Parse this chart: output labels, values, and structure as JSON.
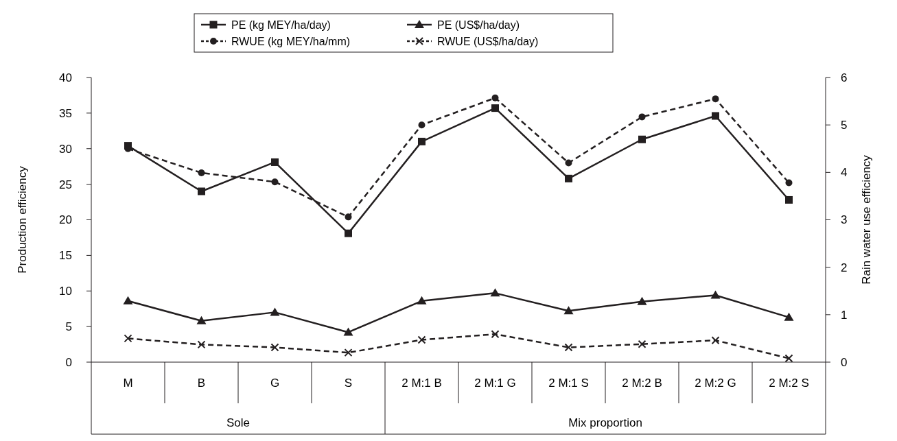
{
  "chart_data": {
    "type": "line",
    "ylabel": "Production efficiency",
    "y2label": "Rain water use efficiency",
    "categories": [
      "M",
      "B",
      "G",
      "S",
      "2 M:1 B",
      "2 M:1 G",
      "2 M:1 S",
      "2 M:2 B",
      "2 M:2 G",
      "2 M:2 S"
    ],
    "ylim": [
      0,
      40
    ],
    "yticks": [
      0,
      5,
      10,
      15,
      20,
      25,
      30,
      35,
      40
    ],
    "y2lim": [
      0,
      6
    ],
    "y2ticks": [
      0,
      1,
      2,
      3,
      4,
      5,
      6
    ],
    "legend": "top",
    "grid": false,
    "annotations": [
      "Sole",
      "Mix proportion"
    ],
    "series": [
      {
        "name": "PE (kg MEY/ha/day)",
        "color": "#231f20",
        "marker": "square",
        "line_style": "solid",
        "values": [
          30.4,
          24.0,
          28.1,
          18.1,
          31.0,
          35.7,
          25.8,
          31.3,
          34.6,
          22.8
        ]
      },
      {
        "name": "PE (US$/ha/day)",
        "color": "#231f20",
        "marker": "triangle",
        "line_style": "solid",
        "values": [
          8.6,
          5.8,
          7.0,
          4.2,
          8.6,
          9.7,
          7.2,
          8.5,
          9.4,
          6.3
        ]
      },
      {
        "name": "RWUE (kg MEY/ha/mm)",
        "color": "#231f20",
        "marker": "circle",
        "line_style": "dashed",
        "axis": "y2",
        "values": [
          4.5,
          3.99,
          3.8,
          3.06,
          5.0,
          5.57,
          4.2,
          5.17,
          5.55,
          3.78
        ]
      },
      {
        "name": "RWUE (US$/ha/day)",
        "color": "#231f20",
        "marker": "cross",
        "line_style": "dashed",
        "axis": "y2",
        "values": [
          0.5,
          0.37,
          0.31,
          0.2,
          0.47,
          0.59,
          0.31,
          0.38,
          0.46,
          0.08
        ]
      }
    ]
  }
}
